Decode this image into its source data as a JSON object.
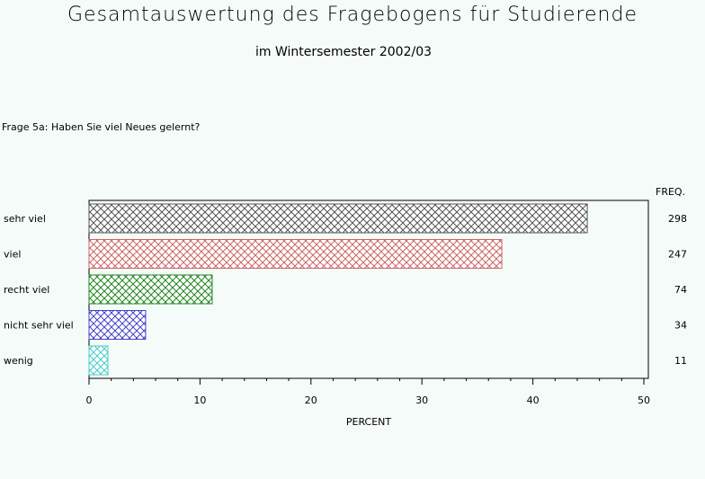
{
  "page": {
    "title": "Gesamtauswertung des Fragebogens für Studierende",
    "subtitle": "im Wintersemester 2002/03",
    "question": "Frage 5a: Haben Sie viel Neues gelernt?",
    "freq_header": "FREQ."
  },
  "chart_data": {
    "type": "bar",
    "orientation": "horizontal",
    "categories": [
      "sehr viel",
      "viel",
      "recht viel",
      "nicht sehr viel",
      "wenig"
    ],
    "values": [
      44.9,
      37.2,
      11.1,
      5.1,
      1.7
    ],
    "freq": [
      "298",
      "247",
      "74",
      "34",
      "11"
    ],
    "colors": [
      "#555555",
      "#cc6666",
      "#228822",
      "#4444cc",
      "#44cccc"
    ],
    "xlabel": "PERCENT",
    "xlim": [
      0,
      50
    ],
    "xticks": [
      "0",
      "10",
      "20",
      "30",
      "40",
      "50"
    ],
    "grid": false
  }
}
